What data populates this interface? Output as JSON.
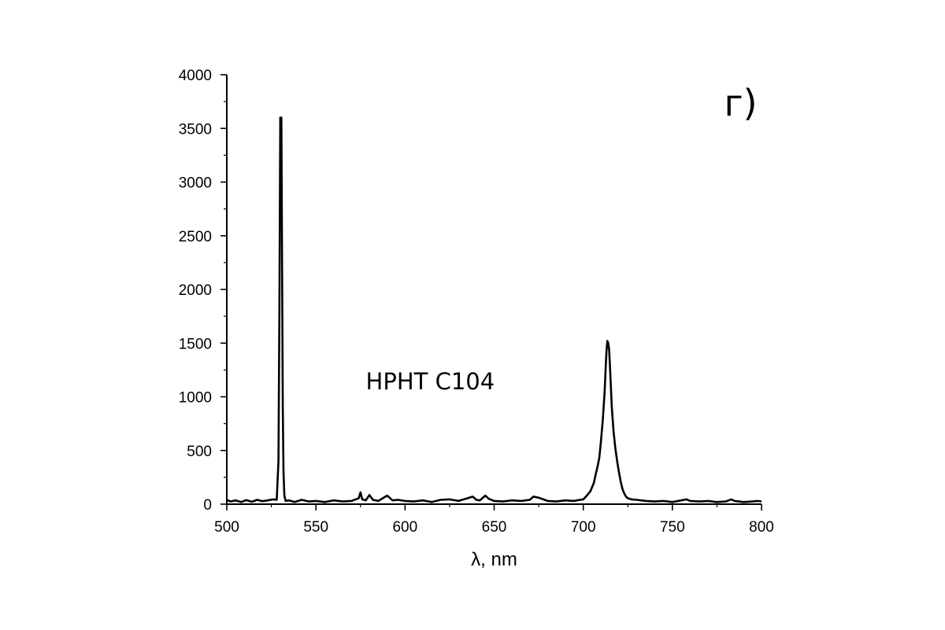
{
  "chart_data": {
    "type": "line",
    "title": "",
    "xlabel": "λ, nm",
    "ylabel": "",
    "xlim": [
      500,
      800
    ],
    "ylim": [
      0,
      4000
    ],
    "x_ticks": [
      500,
      550,
      600,
      650,
      700,
      750,
      800
    ],
    "y_ticks": [
      0,
      500,
      1000,
      1500,
      2000,
      2500,
      3000,
      3500,
      4000
    ],
    "grid": false,
    "legend": "none",
    "line_color": "#000000",
    "annotations": [
      {
        "text": "HPHT C104",
        "x": 578,
        "y": 1070
      },
      {
        "text": "г)",
        "x": 779,
        "y": 3620
      }
    ],
    "series": [
      {
        "x": [
          500,
          502,
          505,
          508,
          511,
          514,
          517,
          520,
          523,
          526,
          528,
          529,
          529.5,
          530,
          530.3,
          530.6,
          531,
          531.4,
          531.8,
          532.3,
          533,
          535,
          538,
          542,
          546,
          550,
          555,
          560,
          565,
          570,
          574,
          575,
          576,
          578,
          580,
          582,
          585,
          588,
          590,
          593,
          596,
          600,
          605,
          610,
          615,
          620,
          625,
          630,
          635,
          638,
          640,
          642,
          645,
          647,
          650,
          655,
          660,
          665,
          670,
          672,
          675,
          680,
          685,
          690,
          695,
          698,
          700,
          702,
          704,
          706,
          707,
          708,
          709,
          710,
          711,
          712,
          712.5,
          713,
          713.5,
          714,
          714.5,
          715,
          715.5,
          716,
          717,
          718,
          719,
          720,
          721,
          722,
          723,
          724,
          725,
          727,
          730,
          735,
          740,
          745,
          750,
          755,
          758,
          760,
          765,
          770,
          775,
          780,
          783,
          785,
          790,
          795,
          798,
          800
        ],
        "values": [
          40,
          25,
          35,
          20,
          38,
          22,
          40,
          28,
          35,
          45,
          40,
          400,
          1800,
          3600,
          3200,
          3600,
          2200,
          900,
          300,
          80,
          30,
          35,
          20,
          40,
          25,
          30,
          20,
          35,
          25,
          30,
          55,
          110,
          45,
          35,
          85,
          40,
          30,
          60,
          80,
          35,
          40,
          30,
          25,
          35,
          20,
          40,
          45,
          30,
          55,
          70,
          40,
          35,
          80,
          50,
          30,
          25,
          35,
          30,
          40,
          70,
          60,
          30,
          25,
          35,
          30,
          40,
          45,
          80,
          120,
          200,
          280,
          350,
          430,
          600,
          800,
          1050,
          1250,
          1420,
          1520,
          1500,
          1440,
          1280,
          1100,
          900,
          680,
          520,
          400,
          300,
          210,
          140,
          100,
          70,
          55,
          45,
          40,
          30,
          25,
          30,
          20,
          35,
          45,
          30,
          25,
          30,
          20,
          25,
          45,
          30,
          20,
          25,
          30,
          25
        ]
      }
    ]
  }
}
